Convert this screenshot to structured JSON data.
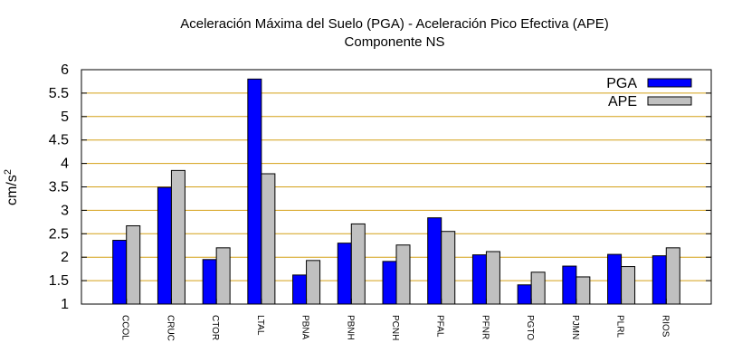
{
  "chart_data": {
    "type": "bar",
    "title": "Aceleración Máxima del Suelo (PGA) -  Aceleración Pico Efectiva (APE)",
    "subtitle": "Componente NS",
    "ylabel": "cm/s",
    "ylabel_sup": "2",
    "xlabel": "",
    "ylim": [
      1,
      6
    ],
    "yticks": [
      "1",
      "1.5",
      "2",
      "2.5",
      "3",
      "3.5",
      "4",
      "4.5",
      "5",
      "5.5",
      "6"
    ],
    "grid": "horizontal",
    "legend_position": "top-right",
    "categories": [
      "CCOL",
      "CRUC",
      "CTOR",
      "LTAL",
      "PBNA",
      "PBNH",
      "PCNH",
      "PFAL",
      "PFNR",
      "PGTO",
      "PJMN",
      "PLRL",
      "RIOS"
    ],
    "series": [
      {
        "name": "PGA",
        "color": "#0000ff",
        "values": [
          2.36,
          3.49,
          1.95,
          5.8,
          1.62,
          2.3,
          1.91,
          2.84,
          2.05,
          1.41,
          1.81,
          2.06,
          2.03
        ]
      },
      {
        "name": "APE",
        "color": "#c0c0c0",
        "values": [
          2.67,
          3.85,
          2.2,
          3.78,
          1.93,
          2.71,
          2.26,
          2.55,
          2.12,
          1.68,
          1.58,
          1.8,
          2.2
        ]
      }
    ],
    "gridline_color": "#d4a017"
  }
}
